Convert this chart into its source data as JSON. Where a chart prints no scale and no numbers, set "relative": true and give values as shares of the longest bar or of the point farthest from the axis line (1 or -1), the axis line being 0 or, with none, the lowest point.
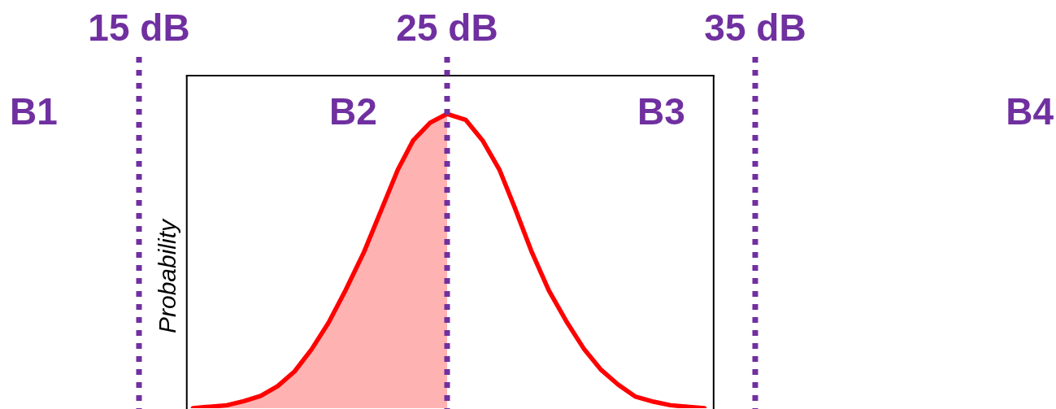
{
  "chart_data": {
    "type": "line",
    "ylabel": "Probability",
    "relative": true,
    "tick_labels": "x",
    "xlim": [
      15,
      35
    ],
    "xticks": [
      {
        "value": 15,
        "label": "15 dB"
      },
      {
        "value": 25,
        "label": "25 dB"
      },
      {
        "value": 35,
        "label": "35 dB"
      }
    ],
    "series": [
      {
        "color": "#ff0000",
        "x": [
          16.75,
          17.3,
          17.85,
          18.4,
          18.95,
          19.5,
          20.05,
          20.6,
          21.15,
          21.7,
          22.3,
          22.85,
          23.4,
          23.9,
          24.45,
          25,
          25.6,
          26.15,
          26.7,
          27.2,
          27.75,
          28.3,
          28.9,
          29.45,
          30,
          30.55,
          31.1,
          31.7,
          32.25,
          32.8,
          33.35
        ],
        "values": [
          0,
          0.005,
          0.01,
          0.024,
          0.042,
          0.075,
          0.125,
          0.2,
          0.29,
          0.4,
          0.53,
          0.67,
          0.81,
          0.91,
          0.97,
          1,
          0.98,
          0.91,
          0.81,
          0.68,
          0.53,
          0.4,
          0.29,
          0.2,
          0.13,
          0.08,
          0.04,
          0.022,
          0.01,
          0.005,
          0
        ]
      },
      {
        "type": "area",
        "color": "#ffb2b2",
        "x": [
          16.75,
          17.3,
          17.85,
          18.4,
          18.95,
          19.5,
          20.05,
          20.6,
          21.15,
          21.7,
          22.3,
          22.85,
          23.4,
          23.9,
          24.45,
          25
        ],
        "values": [
          0,
          0.005,
          0.01,
          0.024,
          0.042,
          0.075,
          0.125,
          0.2,
          0.29,
          0.4,
          0.53,
          0.67,
          0.81,
          0.91,
          0.97,
          1
        ]
      }
    ],
    "ref_lines": [
      {
        "axis": "x",
        "value": 15,
        "color": "#7030a0",
        "line_style": "dotted"
      },
      {
        "axis": "x",
        "value": 25,
        "color": "#7030a0",
        "line_style": "dotted"
      },
      {
        "axis": "x",
        "value": 35,
        "color": "#7030a0",
        "line_style": "dotted"
      },
      {
        "axis": "x",
        "value": 16.55,
        "color": "#000000"
      },
      {
        "axis": "x",
        "value": 33.65,
        "color": "#000000"
      }
    ],
    "annotations": [
      "B1",
      "B2",
      "B3",
      "B4"
    ]
  }
}
